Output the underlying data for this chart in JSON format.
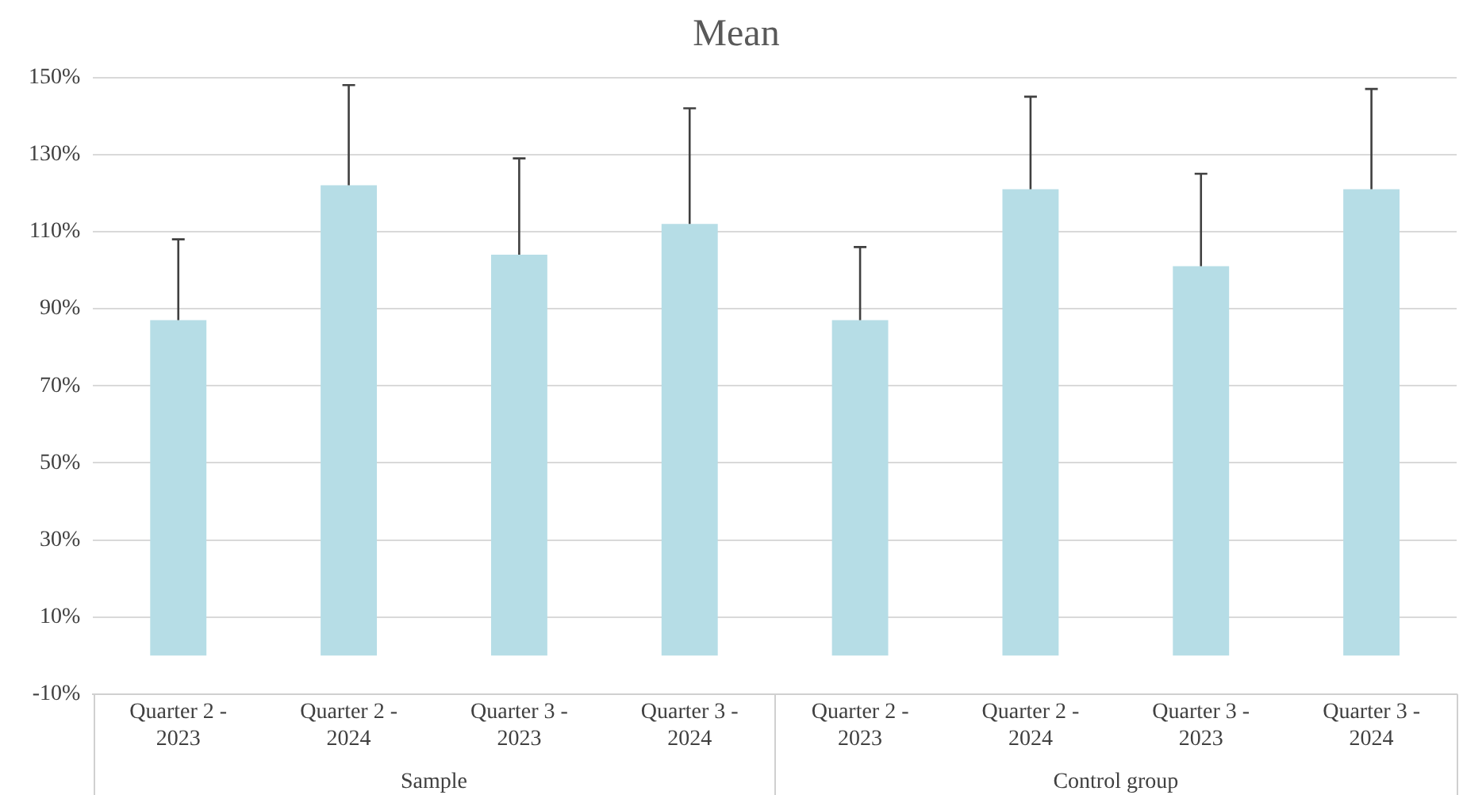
{
  "chart_data": {
    "type": "bar",
    "title": "Mean",
    "categories": [
      "Quarter 2 - 2023",
      "Quarter 2 - 2024",
      "Quarter 3 - 2023",
      "Quarter 3 - 2024",
      "Quarter 2 - 2023",
      "Quarter 2 - 2024",
      "Quarter 3 - 2023",
      "Quarter 3 - 2024"
    ],
    "values": [
      87,
      122,
      104,
      112,
      87,
      121,
      101,
      121
    ],
    "errors": [
      [
        87,
        108
      ],
      [
        122,
        148
      ],
      [
        104,
        129
      ],
      [
        112,
        142
      ],
      [
        87,
        106
      ],
      [
        121,
        145
      ],
      [
        101,
        125
      ],
      [
        121,
        147
      ]
    ],
    "color": "#b6dde6",
    "ylim": [
      -10,
      150
    ],
    "yticks": [
      {
        "value": -10,
        "label": "-10%"
      },
      {
        "value": 10,
        "label": "10%"
      },
      {
        "value": 30,
        "label": "30%"
      },
      {
        "value": 50,
        "label": "50%"
      },
      {
        "value": 70,
        "label": "70%"
      },
      {
        "value": 90,
        "label": "90%"
      },
      {
        "value": 110,
        "label": "110%"
      },
      {
        "value": 130,
        "label": "130%"
      },
      {
        "value": 150,
        "label": "150%"
      }
    ],
    "grid": "y",
    "annotations": [
      "Sample",
      "Control group"
    ]
  }
}
